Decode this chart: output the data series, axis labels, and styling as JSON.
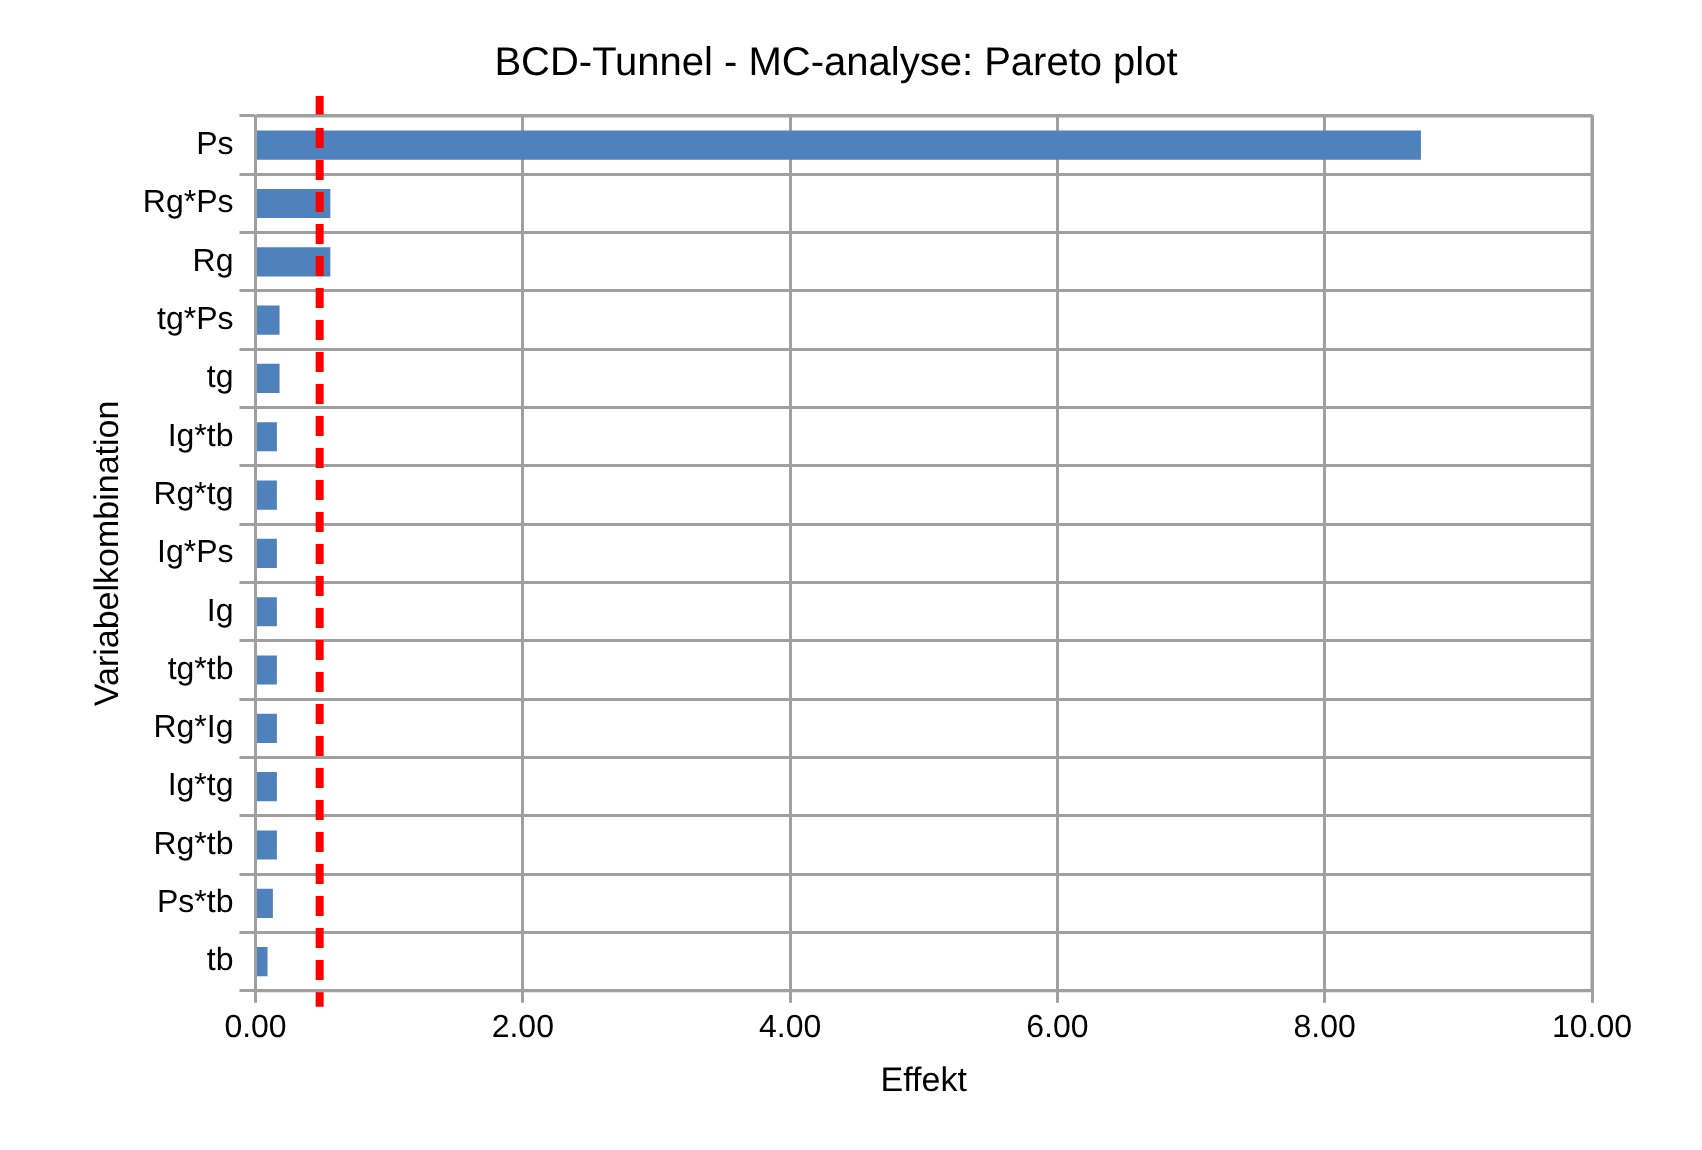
{
  "chart_data": {
    "type": "bar",
    "orientation": "horizontal",
    "title": "BCD-Tunnel - MC-analyse: Pareto plot",
    "xlabel": "Effekt",
    "ylabel": "Variabelkombination",
    "categories": [
      "Ps",
      "Rg*Ps",
      "Rg",
      "tg*Ps",
      "tg",
      "Ig*tb",
      "Rg*tg",
      "Ig*Ps",
      "Ig",
      "tg*tb",
      "Rg*Ig",
      "Ig*tg",
      "Rg*tb",
      "Ps*tb",
      "tb"
    ],
    "values": [
      8.72,
      0.56,
      0.56,
      0.18,
      0.18,
      0.16,
      0.16,
      0.16,
      0.16,
      0.16,
      0.16,
      0.16,
      0.16,
      0.13,
      0.09
    ],
    "color": "#4f81bd",
    "xlim": [
      0,
      10
    ],
    "xticks": [
      {
        "value": 0,
        "label": "0.00"
      },
      {
        "value": 2,
        "label": "2.00"
      },
      {
        "value": 4,
        "label": "4.00"
      },
      {
        "value": 6,
        "label": "6.00"
      },
      {
        "value": 8,
        "label": "8.00"
      },
      {
        "value": 10,
        "label": "10.00"
      }
    ],
    "grid": true,
    "legend": false,
    "ref_lines": [
      {
        "axis": "x",
        "value": 0.48,
        "color": "#ff0000",
        "line_style": "dashed"
      }
    ]
  }
}
